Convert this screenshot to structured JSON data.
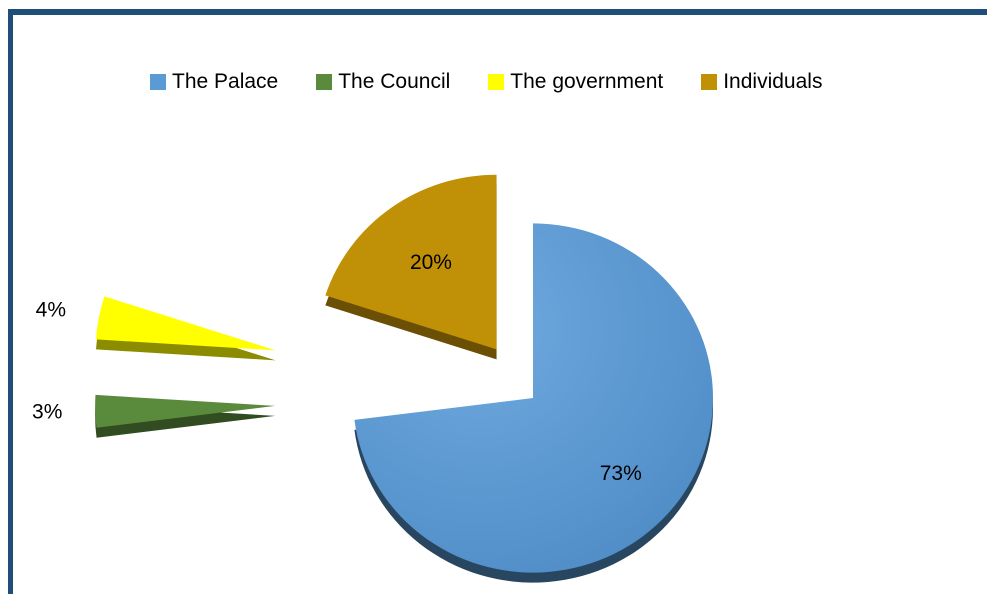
{
  "chart_data": {
    "type": "pie",
    "title": "",
    "legend_position": "top",
    "series": [
      {
        "name": "The Palace",
        "value": 73,
        "label": "73%",
        "color": "#5b9bd5"
      },
      {
        "name": "The Council",
        "value": 3,
        "label": "3%",
        "color": "#5a8a3c"
      },
      {
        "name": "The government",
        "value": 4,
        "label": "4%",
        "color": "#ffff00"
      },
      {
        "name": "Individuals",
        "value": 20,
        "label": "20%",
        "color": "#c09007"
      }
    ]
  }
}
